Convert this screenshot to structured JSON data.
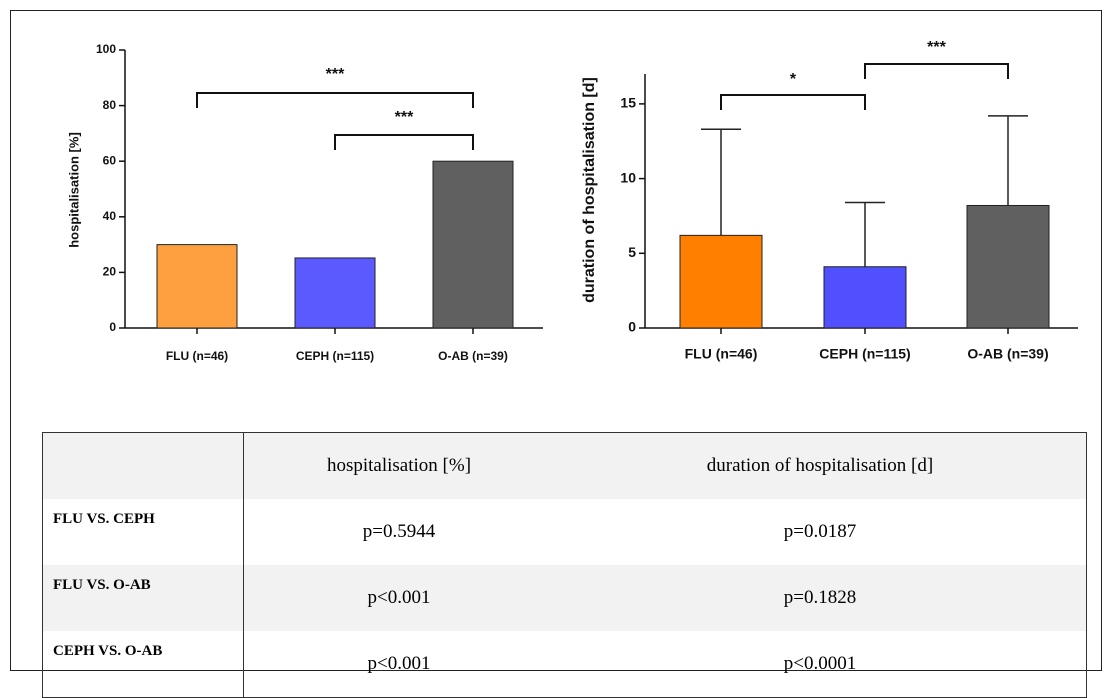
{
  "chart_data": [
    {
      "type": "bar",
      "y_label": "hospitalisation [%]",
      "categories": [
        "FLU (n=46)",
        "CEPH (n=115)",
        "O-AB (n=39)"
      ],
      "values": [
        30,
        25.2,
        60
      ],
      "colors": [
        "#ffa040",
        "#5a5aff",
        "#606060"
      ],
      "ylim": [
        0,
        100
      ],
      "yticks": [
        0,
        20,
        40,
        60,
        80,
        100
      ],
      "annotations": [
        "***",
        "***"
      ]
    },
    {
      "type": "bar",
      "y_label": "duration of hospitalisation [d]",
      "categories": [
        "FLU (n=46)",
        "CEPH (n=115)",
        "O-AB (n=39)"
      ],
      "values": [
        6.2,
        4.1,
        8.2
      ],
      "errors": [
        7.1,
        4.3,
        6.0
      ],
      "colors": [
        "#ff8000",
        "#5050ff",
        "#606060"
      ],
      "ylim": [
        0,
        17
      ],
      "yticks": [
        0,
        5,
        10,
        15
      ],
      "annotations": [
        "*",
        "***"
      ]
    }
  ],
  "table": {
    "columns": [
      "hospitalisation [%]",
      "duration of hospitalisation [d]"
    ],
    "rows": [
      [
        "FLU VS. CEPH",
        "p=0.5944",
        "p=0.0187"
      ],
      [
        "FLU VS. O-AB",
        "p<0.001",
        "p=0.1828"
      ],
      [
        "CEPH VS. O-AB",
        "p<0.001",
        "p<0.0001"
      ]
    ]
  }
}
